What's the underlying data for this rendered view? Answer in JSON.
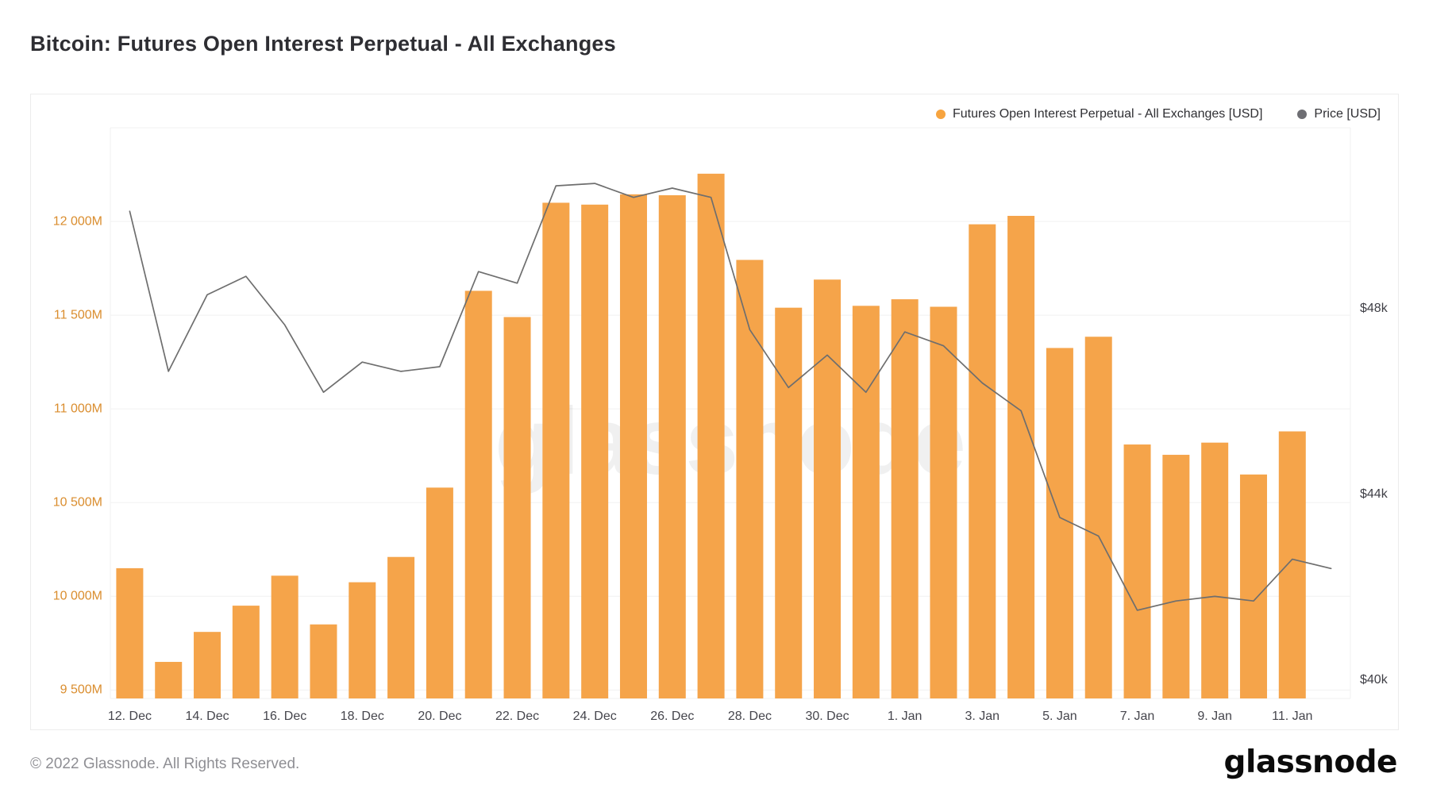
{
  "page": {
    "title": "Bitcoin: Futures Open Interest Perpetual - All Exchanges",
    "footer": {
      "copyright": "© 2022 Glassnode. All Rights Reserved.",
      "brand": "glassnode"
    }
  },
  "legend": {
    "items": [
      {
        "label": "Futures Open Interest Perpetual - All Exchanges [USD]",
        "color": "#F7A43F"
      },
      {
        "label": "Price [USD]",
        "color": "#6E6E73"
      }
    ]
  },
  "chart_data": {
    "type": "bar",
    "title": "Bitcoin: Futures Open Interest Perpetual - All Exchanges",
    "watermark": "glassnode",
    "grid": true,
    "legend_position": "top-right",
    "categories": [
      "12. Dec",
      "13. Dec",
      "14. Dec",
      "15. Dec",
      "16. Dec",
      "17. Dec",
      "18. Dec",
      "19. Dec",
      "20. Dec",
      "21. Dec",
      "22. Dec",
      "23. Dec",
      "24. Dec",
      "25. Dec",
      "26. Dec",
      "27. Dec",
      "28. Dec",
      "29. Dec",
      "30. Dec",
      "31. Dec",
      "1. Jan",
      "2. Jan",
      "3. Jan",
      "4. Jan",
      "5. Jan",
      "6. Jan",
      "7. Jan",
      "8. Jan",
      "9. Jan",
      "10. Jan",
      "11. Jan",
      "12. Jan"
    ],
    "x_axis": {
      "tick_every": 2,
      "ticks_shown": [
        "12. Dec",
        "14. Dec",
        "16. Dec",
        "18. Dec",
        "20. Dec",
        "22. Dec",
        "24. Dec",
        "26. Dec",
        "28. Dec",
        "30. Dec",
        "1. Jan",
        "3. Jan",
        "5. Jan",
        "7. Jan",
        "9. Jan",
        "11. Jan"
      ],
      "color": "#45454c"
    },
    "left_axis": {
      "unit": "USD millions",
      "color": "#DA8D2E",
      "range": [
        9455,
        12500
      ],
      "grid_values": [
        12500,
        12000,
        11500,
        11000,
        10500,
        10000,
        9500
      ],
      "ticks": [
        {
          "value": 12000,
          "label": "12 000M"
        },
        {
          "value": 11500,
          "label": "11 500M"
        },
        {
          "value": 11000,
          "label": "11 000M"
        },
        {
          "value": 10500,
          "label": "10 500M"
        },
        {
          "value": 10000,
          "label": "10 000M"
        },
        {
          "value": 9500,
          "label": "9 500M"
        }
      ]
    },
    "right_axis": {
      "unit": "USD",
      "color": "#3f3f46",
      "range": [
        39600,
        51900
      ],
      "ticks": [
        {
          "value": 48000,
          "label": "$48k"
        },
        {
          "value": 44000,
          "label": "$44k"
        },
        {
          "value": 40000,
          "label": "$40k"
        }
      ]
    },
    "series": [
      {
        "name": "Futures Open Interest Perpetual - All Exchanges [USD]",
        "type": "bar",
        "axis": "left",
        "color": "#F5A44A",
        "unit": "USD millions",
        "values": [
          10150,
          9650,
          9810,
          9950,
          10110,
          9850,
          10075,
          10210,
          10580,
          11630,
          11490,
          12100,
          12090,
          12145,
          12140,
          12255,
          11795,
          11540,
          11690,
          11550,
          11585,
          11545,
          11985,
          12030,
          11325,
          11385,
          10810,
          10755,
          10820,
          10650,
          10880,
          null
        ]
      },
      {
        "name": "Price [USD]",
        "type": "line",
        "axis": "right",
        "color": "#6E6E6E",
        "unit": "USD",
        "values": [
          50100,
          46650,
          48300,
          48700,
          47650,
          46200,
          46850,
          46650,
          46750,
          48800,
          48550,
          50650,
          50700,
          50400,
          50600,
          50400,
          47550,
          46300,
          47000,
          46200,
          47500,
          47200,
          46400,
          45800,
          43500,
          43100,
          41500,
          41700,
          41800,
          41700,
          42600,
          42400
        ]
      }
    ]
  }
}
